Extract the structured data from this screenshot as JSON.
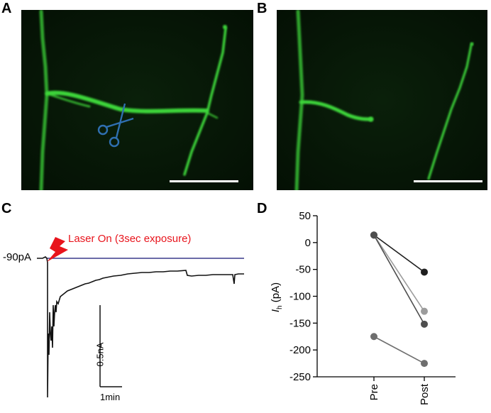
{
  "panels": {
    "a": "A",
    "b": "B",
    "c": "C",
    "d": "D"
  },
  "colors": {
    "neuron": "#3ed63a",
    "laser": "#e8141c",
    "baseline": "#3a3a8c",
    "scissors": "#2f6fb0"
  },
  "panel_c": {
    "holding_label": "-90pA",
    "laser_label": "Laser On (3sec exposure)",
    "scale_current": "0.5nA",
    "scale_time": "1min",
    "icon": "laser-bolt-icon"
  },
  "panel_a": {
    "icon": "scissors-icon"
  },
  "chart_data": {
    "type": "line",
    "categories": [
      "Pre",
      "Post"
    ],
    "ylabel_main": "I",
    "ylabel_sub": "h",
    "ylabel_unit": " (pA)",
    "ylim": [
      -250,
      50
    ],
    "yticks": [
      50,
      0,
      -50,
      -100,
      -150,
      -200,
      -250
    ],
    "grid": false,
    "series": [
      {
        "values": [
          14,
          -55
        ],
        "color": "#1f1f1f"
      },
      {
        "values": [
          14,
          -128
        ],
        "color": "#9c9c9c"
      },
      {
        "values": [
          14,
          -152
        ],
        "color": "#4e4e4e"
      },
      {
        "values": [
          -175,
          -225
        ],
        "color": "#6e6e6e"
      }
    ]
  }
}
